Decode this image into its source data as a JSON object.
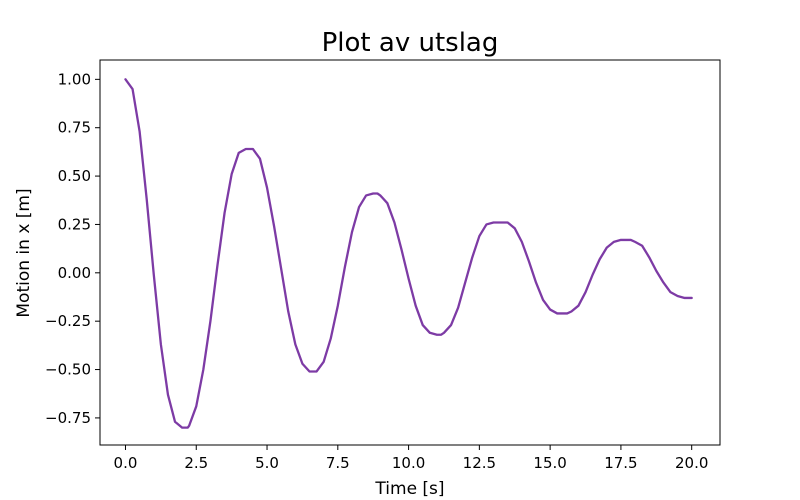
{
  "chart_data": {
    "type": "line",
    "title": "Plot av utslag",
    "xlabel": "Time [s]",
    "ylabel": "Motion in x [m]",
    "xlim": [
      -0.9,
      21.0
    ],
    "ylim": [
      -0.89,
      1.1
    ],
    "x_ticks": [
      "0.0",
      "2.5",
      "5.0",
      "7.5",
      "10.0",
      "12.5",
      "15.0",
      "17.5",
      "20.0"
    ],
    "y_ticks": [
      "1.00",
      "0.75",
      "0.50",
      "0.25",
      "0.00",
      "−0.25",
      "−0.50",
      "−0.75"
    ],
    "grid": false,
    "series": [
      {
        "color": "#7d3ba5",
        "x": [
          0.0,
          0.25,
          0.5,
          0.75,
          1.0,
          1.25,
          1.5,
          1.75,
          2.0,
          2.2,
          2.25,
          2.5,
          2.75,
          3.0,
          3.25,
          3.5,
          3.75,
          4.0,
          4.25,
          4.45,
          4.5,
          4.75,
          5.0,
          5.25,
          5.5,
          5.75,
          6.0,
          6.25,
          6.5,
          6.7,
          6.75,
          7.0,
          7.25,
          7.5,
          7.75,
          8.0,
          8.25,
          8.5,
          8.75,
          8.9,
          9.0,
          9.25,
          9.5,
          9.75,
          10.0,
          10.25,
          10.5,
          10.75,
          11.0,
          11.15,
          11.25,
          11.5,
          11.75,
          12.0,
          12.25,
          12.5,
          12.75,
          13.0,
          13.25,
          13.4,
          13.5,
          13.75,
          14.0,
          14.25,
          14.5,
          14.75,
          15.0,
          15.25,
          15.5,
          15.6,
          15.75,
          16.0,
          16.25,
          16.5,
          16.75,
          17.0,
          17.25,
          17.5,
          17.75,
          17.85,
          18.0,
          18.25,
          18.5,
          18.75,
          19.0,
          19.25,
          19.5,
          19.75,
          20.0
        ],
        "y": [
          1.0,
          0.95,
          0.73,
          0.38,
          -0.01,
          -0.37,
          -0.63,
          -0.77,
          -0.8,
          -0.8,
          -0.79,
          -0.69,
          -0.5,
          -0.25,
          0.04,
          0.31,
          0.51,
          0.62,
          0.64,
          0.64,
          0.64,
          0.59,
          0.44,
          0.24,
          0.02,
          -0.2,
          -0.37,
          -0.47,
          -0.51,
          -0.51,
          -0.51,
          -0.46,
          -0.34,
          -0.17,
          0.03,
          0.21,
          0.34,
          0.4,
          0.41,
          0.41,
          0.4,
          0.36,
          0.26,
          0.12,
          -0.03,
          -0.17,
          -0.27,
          -0.31,
          -0.32,
          -0.32,
          -0.31,
          -0.27,
          -0.18,
          -0.05,
          0.08,
          0.19,
          0.25,
          0.26,
          0.26,
          0.26,
          0.26,
          0.23,
          0.16,
          0.06,
          -0.05,
          -0.14,
          -0.19,
          -0.21,
          -0.21,
          -0.21,
          -0.2,
          -0.17,
          -0.1,
          -0.01,
          0.07,
          0.13,
          0.16,
          0.17,
          0.17,
          0.17,
          0.16,
          0.14,
          0.08,
          0.01,
          -0.05,
          -0.1,
          -0.12,
          -0.13,
          -0.13
        ]
      }
    ]
  }
}
